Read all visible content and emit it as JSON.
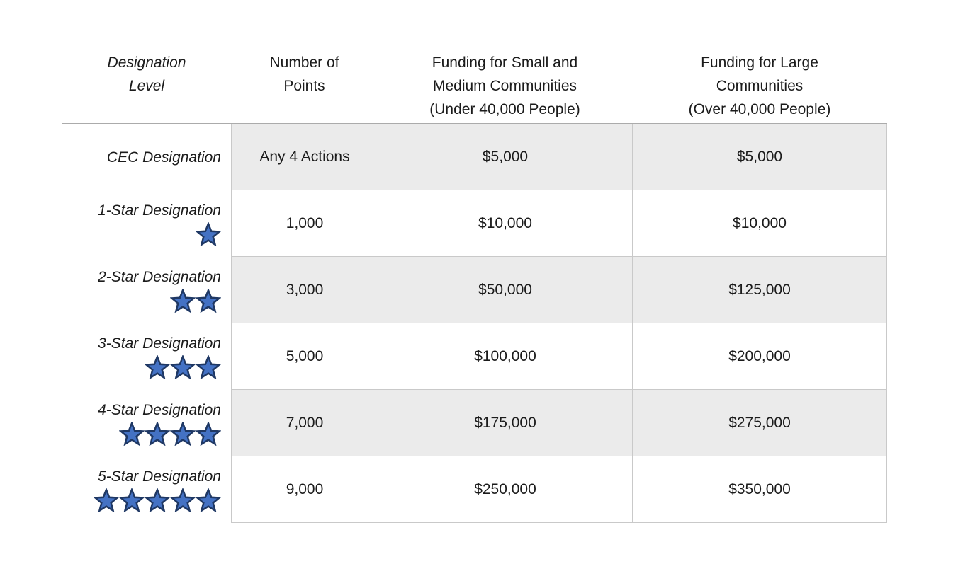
{
  "table": {
    "headers": {
      "designation_level": "Designation\nLevel",
      "number_of_points": "Number of\nPoints",
      "funding_small_medium": "Funding for Small and\nMedium Communities\n(Under 40,000 People)",
      "funding_large": "Funding for Large\nCommunities\n(Over 40,000 People)"
    },
    "rows": [
      {
        "level": "CEC Designation",
        "stars": 0,
        "points": "Any 4 Actions",
        "funding_small_medium": "$5,000",
        "funding_large": "$5,000",
        "shaded": true
      },
      {
        "level": "1-Star Designation",
        "stars": 1,
        "points": "1,000",
        "funding_small_medium": "$10,000",
        "funding_large": "$10,000",
        "shaded": false
      },
      {
        "level": "2-Star Designation",
        "stars": 2,
        "points": "3,000",
        "funding_small_medium": "$50,000",
        "funding_large": "$125,000",
        "shaded": true
      },
      {
        "level": "3-Star Designation",
        "stars": 3,
        "points": "5,000",
        "funding_small_medium": "$100,000",
        "funding_large": "$200,000",
        "shaded": false
      },
      {
        "level": "4-Star Designation",
        "stars": 4,
        "points": "7,000",
        "funding_small_medium": "$175,000",
        "funding_large": "$275,000",
        "shaded": true
      },
      {
        "level": "5-Star Designation",
        "stars": 5,
        "points": "9,000",
        "funding_small_medium": "$250,000",
        "funding_large": "$350,000",
        "shaded": false
      }
    ]
  },
  "colors": {
    "star_fill": "#4472C4",
    "star_stroke": "#1F3864",
    "row_shade": "#EBEBEB",
    "cell_border": "#C9C9C9",
    "header_underline": "#ABABAB"
  },
  "icons": {
    "star": "star-icon"
  }
}
